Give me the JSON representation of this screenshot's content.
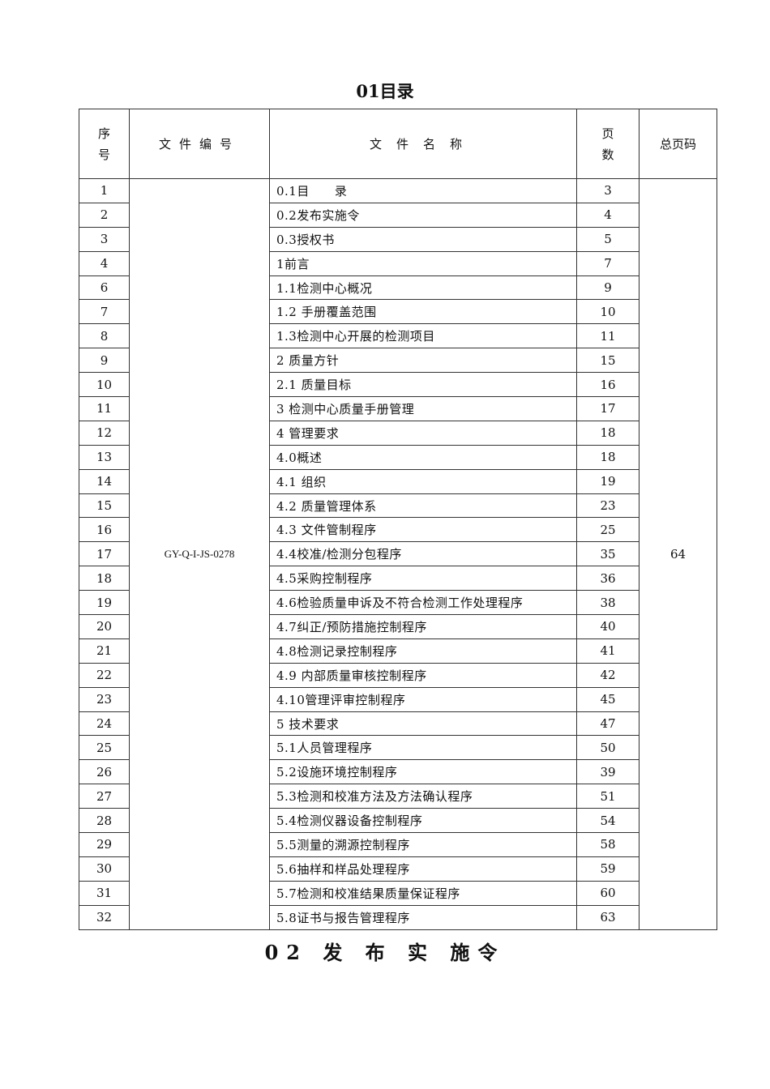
{
  "title": "01目录",
  "footer_title": "02 发 布 实 施令",
  "headers": {
    "seq_line1": "序",
    "seq_line2": "号",
    "code": "文件编号",
    "name": "文件名称",
    "pages_line1": "页",
    "pages_line2": "数",
    "total": "总页码"
  },
  "file_code": "GY-Q-I-JS-0278",
  "total_pages": "64",
  "rows": [
    {
      "seq": "1",
      "name": "0.1目　　录",
      "pages": "3"
    },
    {
      "seq": "2",
      "name": "0.2发布实施令",
      "pages": "4"
    },
    {
      "seq": "3",
      "name": "0.3授权书",
      "pages": "5"
    },
    {
      "seq": "4",
      "name": "1前言",
      "pages": "7"
    },
    {
      "seq": "6",
      "name": "1.1检测中心概况",
      "pages": "9"
    },
    {
      "seq": "7",
      "name": "1.2 手册覆盖范围",
      "pages": "10"
    },
    {
      "seq": "8",
      "name": "1.3检测中心开展的检测项目",
      "pages": "11"
    },
    {
      "seq": "9",
      "name": "2 质量方针",
      "pages": "15"
    },
    {
      "seq": "10",
      "name": "2.1 质量目标",
      "pages": "16"
    },
    {
      "seq": "11",
      "name": "3 检测中心质量手册管理",
      "pages": "17"
    },
    {
      "seq": "12",
      "name": "4 管理要求",
      "pages": "18"
    },
    {
      "seq": "13",
      "name": "4.0概述",
      "pages": "18"
    },
    {
      "seq": "14",
      "name": "4.1 组织",
      "pages": "19"
    },
    {
      "seq": "15",
      "name": "4.2 质量管理体系",
      "pages": "23"
    },
    {
      "seq": "16",
      "name": "4.3 文件管制程序",
      "pages": "25"
    },
    {
      "seq": "17",
      "name": "4.4校准/检测分包程序",
      "pages": "35"
    },
    {
      "seq": "18",
      "name": "4.5采购控制程序",
      "pages": "36"
    },
    {
      "seq": "19",
      "name": "4.6检验质量申诉及不符合检测工作处理程序",
      "pages": "38"
    },
    {
      "seq": "20",
      "name": "4.7纠正/预防措施控制程序",
      "pages": "40"
    },
    {
      "seq": "21",
      "name": "4.8检测记录控制程序",
      "pages": "41"
    },
    {
      "seq": "22",
      "name": "4.9 内部质量审核控制程序",
      "pages": "42"
    },
    {
      "seq": "23",
      "name": "4.10管理评审控制程序",
      "pages": "45"
    },
    {
      "seq": "24",
      "name": "5 技术要求",
      "pages": "47"
    },
    {
      "seq": "25",
      "name": "5.1人员管理程序",
      "pages": "50"
    },
    {
      "seq": "26",
      "name": "5.2设施环境控制程序",
      "pages": "39"
    },
    {
      "seq": "27",
      "name": "5.3检测和校准方法及方法确认程序",
      "pages": "51"
    },
    {
      "seq": "28",
      "name": "5.4检测仪器设备控制程序",
      "pages": "54"
    },
    {
      "seq": "29",
      "name": "5.5测量的溯源控制程序",
      "pages": "58"
    },
    {
      "seq": "30",
      "name": "5.6抽样和样品处理程序",
      "pages": "59"
    },
    {
      "seq": "31",
      "name": "5.7检测和校准结果质量保证程序",
      "pages": "60"
    },
    {
      "seq": "32",
      "name": "5.8证书与报告管理程序",
      "pages": "63"
    }
  ]
}
